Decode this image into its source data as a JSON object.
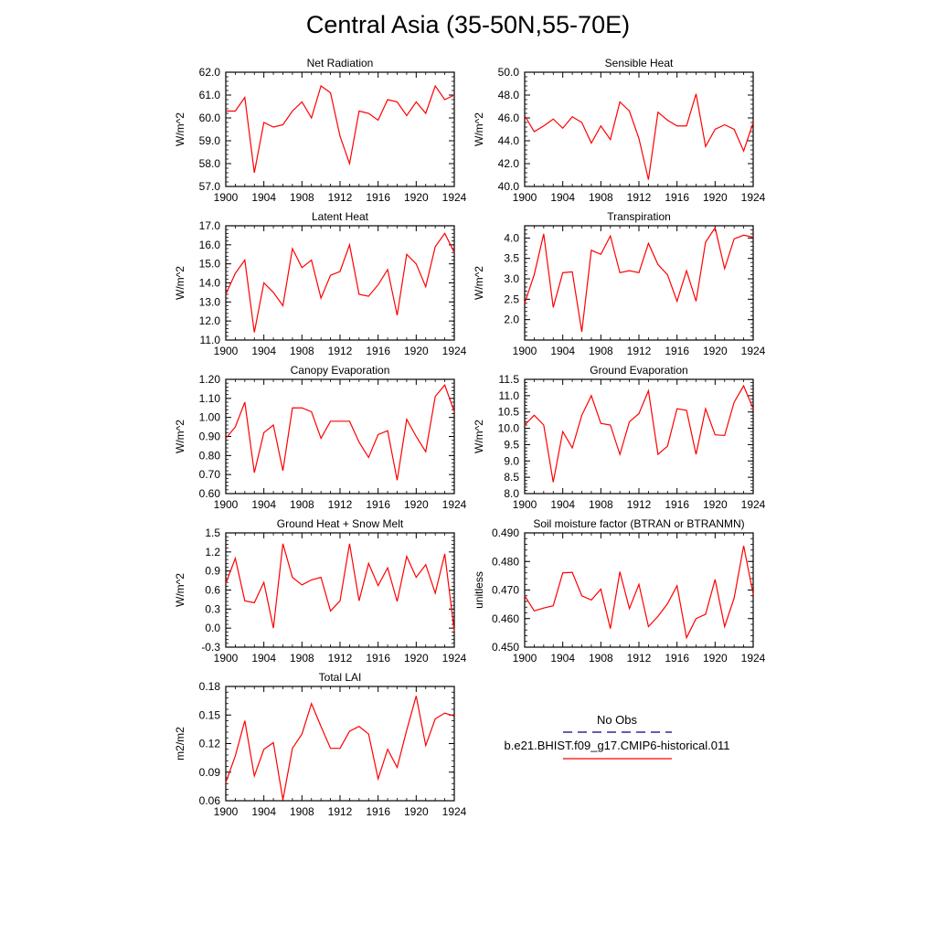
{
  "page_title": "Central Asia (35-50N,55-70E)",
  "colors": {
    "model_line": "#ff0000",
    "obs_line": "#000080",
    "axis": "#000000"
  },
  "legend": {
    "obs_label": "No Obs",
    "model_label": "b.e21.BHIST.f09_g17.CMIP6-historical.011"
  },
  "x_tick_labels": [
    "1900",
    "1904",
    "1908",
    "1912",
    "1916",
    "1920",
    "1924"
  ],
  "chart_data": [
    {
      "type": "line",
      "title": "Net Radiation",
      "ylabel": "W/m^2",
      "xlim": [
        1900,
        1924
      ],
      "ylim": [
        57.0,
        62.0
      ],
      "y_ticks": [
        "62.0",
        "61.0",
        "60.0",
        "59.0",
        "58.0",
        "57.0"
      ],
      "x": [
        1900,
        1901,
        1902,
        1903,
        1904,
        1905,
        1906,
        1907,
        1908,
        1909,
        1910,
        1911,
        1912,
        1913,
        1914,
        1915,
        1916,
        1917,
        1918,
        1919,
        1920,
        1921,
        1922,
        1923,
        1924
      ],
      "series": [
        {
          "name": "b.e21.BHIST.f09_g17.CMIP6-historical.011",
          "values": [
            60.3,
            60.3,
            60.9,
            57.6,
            59.8,
            59.6,
            59.7,
            60.3,
            60.7,
            60.0,
            61.4,
            61.1,
            59.2,
            58.0,
            60.3,
            60.2,
            59.9,
            60.8,
            60.7,
            60.1,
            60.7,
            60.2,
            61.4,
            60.8,
            61.0
          ]
        }
      ]
    },
    {
      "type": "line",
      "title": "Sensible Heat",
      "ylabel": "W/m^2",
      "xlim": [
        1900,
        1924
      ],
      "ylim": [
        40.0,
        50.0
      ],
      "y_ticks": [
        "50.0",
        "48.0",
        "46.0",
        "44.0",
        "42.0",
        "40.0"
      ],
      "x": [
        1900,
        1901,
        1902,
        1903,
        1904,
        1905,
        1906,
        1907,
        1908,
        1909,
        1910,
        1911,
        1912,
        1913,
        1914,
        1915,
        1916,
        1917,
        1918,
        1919,
        1920,
        1921,
        1922,
        1923,
        1924
      ],
      "series": [
        {
          "name": "b.e21.BHIST.f09_g17.CMIP6-historical.011",
          "values": [
            46.2,
            44.8,
            45.3,
            45.9,
            45.1,
            46.1,
            45.6,
            43.8,
            45.3,
            44.1,
            47.4,
            46.6,
            44.2,
            40.6,
            46.5,
            45.8,
            45.3,
            45.3,
            48.1,
            43.5,
            45.0,
            45.4,
            45.0,
            43.1,
            45.6
          ]
        }
      ]
    },
    {
      "type": "line",
      "title": "Latent Heat",
      "ylabel": "W/m^2",
      "xlim": [
        1900,
        1924
      ],
      "ylim": [
        11.0,
        17.0
      ],
      "y_ticks": [
        "17.0",
        "16.0",
        "15.0",
        "14.0",
        "13.0",
        "12.0",
        "11.0"
      ],
      "x": [
        1900,
        1901,
        1902,
        1903,
        1904,
        1905,
        1906,
        1907,
        1908,
        1909,
        1910,
        1911,
        1912,
        1913,
        1914,
        1915,
        1916,
        1917,
        1918,
        1919,
        1920,
        1921,
        1922,
        1923,
        1924
      ],
      "series": [
        {
          "name": "b.e21.BHIST.f09_g17.CMIP6-historical.011",
          "values": [
            13.4,
            14.5,
            15.2,
            11.4,
            14.0,
            13.5,
            12.8,
            15.8,
            14.8,
            15.2,
            13.2,
            14.4,
            14.6,
            16.0,
            13.4,
            13.3,
            13.9,
            14.7,
            12.3,
            15.5,
            15.0,
            13.8,
            15.9,
            16.6,
            15.6
          ]
        }
      ]
    },
    {
      "type": "line",
      "title": "Transpiration",
      "ylabel": "W/m^2",
      "xlim": [
        1900,
        1924
      ],
      "ylim": [
        1.5,
        4.3
      ],
      "y_ticks": [
        "4.0",
        "3.5",
        "3.0",
        "2.5",
        "2.0"
      ],
      "x": [
        1900,
        1901,
        1902,
        1903,
        1904,
        1905,
        1906,
        1907,
        1908,
        1909,
        1910,
        1911,
        1912,
        1913,
        1914,
        1915,
        1916,
        1917,
        1918,
        1919,
        1920,
        1921,
        1922,
        1923,
        1924
      ],
      "series": [
        {
          "name": "b.e21.BHIST.f09_g17.CMIP6-historical.011",
          "values": [
            2.4,
            3.1,
            4.1,
            2.3,
            3.15,
            3.17,
            1.7,
            3.7,
            3.6,
            4.05,
            3.15,
            3.2,
            3.15,
            3.87,
            3.35,
            3.1,
            2.45,
            3.2,
            2.45,
            3.9,
            4.25,
            3.25,
            3.98,
            4.07,
            4.02
          ]
        }
      ]
    },
    {
      "type": "line",
      "title": "Canopy Evaporation",
      "ylabel": "W/m^2",
      "xlim": [
        1900,
        1924
      ],
      "ylim": [
        0.6,
        1.2
      ],
      "y_ticks": [
        "1.20",
        "1.10",
        "1.00",
        "0.90",
        "0.80",
        "0.70",
        "0.60"
      ],
      "x": [
        1900,
        1901,
        1902,
        1903,
        1904,
        1905,
        1906,
        1907,
        1908,
        1909,
        1910,
        1911,
        1912,
        1913,
        1914,
        1915,
        1916,
        1917,
        1918,
        1919,
        1920,
        1921,
        1922,
        1923,
        1924
      ],
      "series": [
        {
          "name": "b.e21.BHIST.f09_g17.CMIP6-historical.011",
          "values": [
            0.89,
            0.95,
            1.08,
            0.71,
            0.92,
            0.96,
            0.72,
            1.05,
            1.05,
            1.03,
            0.89,
            0.98,
            0.98,
            0.98,
            0.87,
            0.79,
            0.91,
            0.93,
            0.67,
            0.99,
            0.9,
            0.82,
            1.11,
            1.17,
            1.03
          ]
        }
      ]
    },
    {
      "type": "line",
      "title": "Ground Evaporation",
      "ylabel": "W/m^2",
      "xlim": [
        1900,
        1924
      ],
      "ylim": [
        8.0,
        11.5
      ],
      "y_ticks": [
        "11.5",
        "11.0",
        "10.5",
        "10.0",
        "9.5",
        "9.0",
        "8.5",
        "8.0"
      ],
      "x": [
        1900,
        1901,
        1902,
        1903,
        1904,
        1905,
        1906,
        1907,
        1908,
        1909,
        1910,
        1911,
        1912,
        1913,
        1914,
        1915,
        1916,
        1917,
        1918,
        1919,
        1920,
        1921,
        1922,
        1923,
        1924
      ],
      "series": [
        {
          "name": "b.e21.BHIST.f09_g17.CMIP6-historical.011",
          "values": [
            10.1,
            10.4,
            10.1,
            8.35,
            9.9,
            9.4,
            10.4,
            11.0,
            10.15,
            10.1,
            9.2,
            10.2,
            10.45,
            11.15,
            9.2,
            9.45,
            10.6,
            10.55,
            9.2,
            10.6,
            9.8,
            9.78,
            10.8,
            11.3,
            10.6
          ]
        }
      ]
    },
    {
      "type": "line",
      "title": "Ground Heat + Snow Melt",
      "ylabel": "W/m^2",
      "xlim": [
        1900,
        1924
      ],
      "ylim": [
        -0.3,
        1.5
      ],
      "y_ticks": [
        "1.5",
        "1.2",
        "0.9",
        "0.6",
        "0.3",
        "0.0",
        "-0.3"
      ],
      "x": [
        1900,
        1901,
        1902,
        1903,
        1904,
        1905,
        1906,
        1907,
        1908,
        1909,
        1910,
        1911,
        1912,
        1913,
        1914,
        1915,
        1916,
        1917,
        1918,
        1919,
        1920,
        1921,
        1922,
        1923,
        1924
      ],
      "series": [
        {
          "name": "b.e21.BHIST.f09_g17.CMIP6-historical.011",
          "values": [
            0.7,
            1.1,
            0.43,
            0.4,
            0.72,
            0.0,
            1.33,
            0.8,
            0.68,
            0.76,
            0.8,
            0.27,
            0.43,
            1.33,
            0.43,
            1.02,
            0.67,
            0.95,
            0.42,
            1.13,
            0.8,
            1.0,
            0.55,
            1.17,
            -0.05
          ]
        }
      ]
    },
    {
      "type": "line",
      "title": "Soil moisture factor (BTRAN or BTRANMN)",
      "ylabel": "unitless",
      "xlim": [
        1900,
        1924
      ],
      "ylim": [
        0.45,
        0.49
      ],
      "y_ticks": [
        "0.490",
        "0.480",
        "0.470",
        "0.460",
        "0.450"
      ],
      "x": [
        1900,
        1901,
        1902,
        1903,
        1904,
        1905,
        1906,
        1907,
        1908,
        1909,
        1910,
        1911,
        1912,
        1913,
        1914,
        1915,
        1916,
        1917,
        1918,
        1919,
        1920,
        1921,
        1922,
        1923,
        1924
      ],
      "series": [
        {
          "name": "b.e21.BHIST.f09_g17.CMIP6-historical.011",
          "values": [
            0.468,
            0.4627,
            0.4637,
            0.4645,
            0.476,
            0.4762,
            0.468,
            0.4665,
            0.4703,
            0.4565,
            0.4764,
            0.4635,
            0.472,
            0.4572,
            0.4608,
            0.4652,
            0.4715,
            0.4533,
            0.46,
            0.4615,
            0.4737,
            0.4572,
            0.4672,
            0.4855,
            0.4685
          ]
        }
      ]
    },
    {
      "type": "line",
      "title": "Total LAI",
      "ylabel": "m2/m2",
      "xlim": [
        1900,
        1924
      ],
      "ylim": [
        0.06,
        0.18
      ],
      "y_ticks": [
        "0.18",
        "0.15",
        "0.12",
        "0.09",
        "0.06"
      ],
      "x": [
        1900,
        1901,
        1902,
        1903,
        1904,
        1905,
        1906,
        1907,
        1908,
        1909,
        1910,
        1911,
        1912,
        1913,
        1914,
        1915,
        1916,
        1917,
        1918,
        1919,
        1920,
        1921,
        1922,
        1923,
        1924
      ],
      "series": [
        {
          "name": "b.e21.BHIST.f09_g17.CMIP6-historical.011",
          "values": [
            0.079,
            0.107,
            0.144,
            0.086,
            0.114,
            0.121,
            0.061,
            0.115,
            0.13,
            0.162,
            0.138,
            0.115,
            0.115,
            0.133,
            0.138,
            0.13,
            0.083,
            0.114,
            0.095,
            0.134,
            0.17,
            0.118,
            0.146,
            0.152,
            0.149
          ]
        }
      ]
    }
  ]
}
